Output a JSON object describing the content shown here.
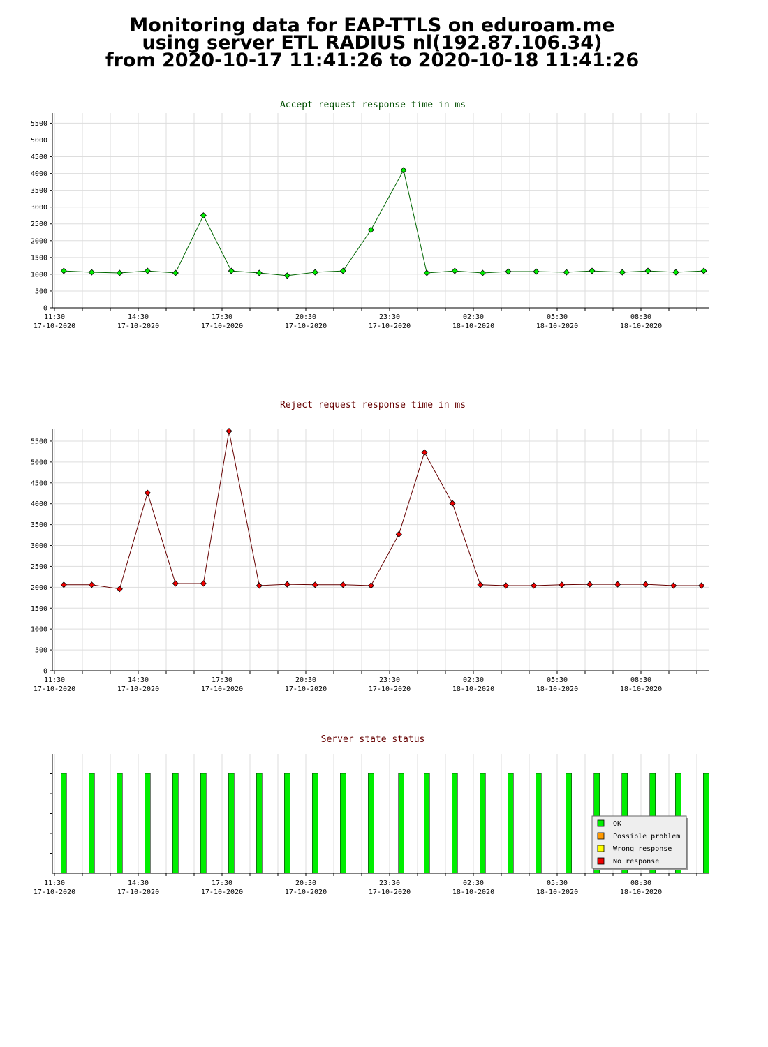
{
  "page": {
    "title_lines": [
      "Monitoring data for EAP-TTLS on eduroam.me",
      "using server ETL RADIUS nl(192.87.106.34)",
      "from 2020-10-17 11:41:26 to 2020-10-18 11:41:26"
    ]
  },
  "x_axis": {
    "ticks": [
      {
        "time": "11:30",
        "date": "17-10-2020"
      },
      {
        "time": "14:30",
        "date": "17-10-2020"
      },
      {
        "time": "17:30",
        "date": "17-10-2020"
      },
      {
        "time": "20:30",
        "date": "17-10-2020"
      },
      {
        "time": "23:30",
        "date": "17-10-2020"
      },
      {
        "time": "02:30",
        "date": "18-10-2020"
      },
      {
        "time": "05:30",
        "date": "18-10-2020"
      },
      {
        "time": "08:30",
        "date": "18-10-2020"
      }
    ]
  },
  "chart_data": [
    {
      "type": "line",
      "title": "Accept request response time in ms",
      "title_color": "#004d00",
      "line_color": "#006600",
      "marker_color": "#00ee00",
      "ylim": [
        0,
        5800
      ],
      "yticks": [
        0,
        500,
        1000,
        1500,
        2000,
        2500,
        3000,
        3500,
        4000,
        4500,
        5000,
        5500
      ],
      "x": [
        "17-10-2020 11:50",
        "17-10-2020 12:50",
        "17-10-2020 13:50",
        "17-10-2020 14:50",
        "17-10-2020 15:50",
        "17-10-2020 16:50",
        "17-10-2020 17:50",
        "17-10-2020 18:50",
        "17-10-2020 19:50",
        "17-10-2020 20:50",
        "17-10-2020 21:50",
        "17-10-2020 22:50",
        "18-10-2020 00:00",
        "18-10-2020 00:50",
        "18-10-2020 01:50",
        "18-10-2020 02:50",
        "18-10-2020 03:45",
        "18-10-2020 04:45",
        "18-10-2020 05:50",
        "18-10-2020 06:45",
        "18-10-2020 07:50",
        "18-10-2020 08:45",
        "18-10-2020 09:45",
        "18-10-2020 10:45"
      ],
      "values": [
        1100,
        1060,
        1040,
        1100,
        1040,
        2750,
        1100,
        1040,
        960,
        1060,
        1100,
        2320,
        4100,
        1040,
        1100,
        1040,
        1080,
        1080,
        1060,
        1100,
        1060,
        1100,
        1060,
        1100
      ]
    },
    {
      "type": "line",
      "title": "Reject request response time in ms",
      "title_color": "#660000",
      "line_color": "#660000",
      "marker_color": "#ee0000",
      "ylim": [
        0,
        5800
      ],
      "yticks": [
        0,
        500,
        1000,
        1500,
        2000,
        2500,
        3000,
        3500,
        4000,
        4500,
        5000,
        5500
      ],
      "x": [
        "17-10-2020 11:50",
        "17-10-2020 12:50",
        "17-10-2020 13:50",
        "17-10-2020 14:50",
        "17-10-2020 15:50",
        "17-10-2020 16:50",
        "17-10-2020 17:45",
        "17-10-2020 18:50",
        "17-10-2020 19:50",
        "17-10-2020 20:50",
        "17-10-2020 21:50",
        "17-10-2020 22:50",
        "17-10-2020 23:50",
        "18-10-2020 00:45",
        "18-10-2020 01:45",
        "18-10-2020 02:45",
        "18-10-2020 03:40",
        "18-10-2020 04:40",
        "18-10-2020 05:40",
        "18-10-2020 06:40",
        "18-10-2020 07:40",
        "18-10-2020 08:40",
        "18-10-2020 09:40",
        "18-10-2020 10:40"
      ],
      "values": [
        2060,
        2060,
        1960,
        4260,
        2090,
        2090,
        5740,
        2040,
        2070,
        2060,
        2060,
        2040,
        3270,
        5230,
        4010,
        2060,
        2040,
        2040,
        2060,
        2070,
        2070,
        2070,
        2040,
        2040
      ]
    },
    {
      "type": "bar",
      "title": "Server state status",
      "title_color": "#660000",
      "x": [
        "17-10-2020 11:50",
        "17-10-2020 12:50",
        "17-10-2020 13:50",
        "17-10-2020 14:50",
        "17-10-2020 15:50",
        "17-10-2020 16:50",
        "17-10-2020 17:50",
        "17-10-2020 18:50",
        "17-10-2020 19:50",
        "17-10-2020 20:50",
        "17-10-2020 21:50",
        "17-10-2020 22:50",
        "17-10-2020 23:55",
        "18-10-2020 00:50",
        "18-10-2020 01:50",
        "18-10-2020 02:50",
        "18-10-2020 03:50",
        "18-10-2020 04:50",
        "18-10-2020 05:55",
        "18-10-2020 06:55",
        "18-10-2020 07:55",
        "18-10-2020 08:55",
        "18-10-2020 09:50",
        "18-10-2020 10:50"
      ],
      "states": [
        "OK",
        "OK",
        "OK",
        "OK",
        "OK",
        "OK",
        "OK",
        "OK",
        "OK",
        "OK",
        "OK",
        "OK",
        "OK",
        "OK",
        "OK",
        "OK",
        "OK",
        "OK",
        "OK",
        "OK",
        "OK",
        "OK",
        "OK",
        "OK"
      ],
      "legend": [
        {
          "label": "OK",
          "color": "#00ee00"
        },
        {
          "label": "Possible problem",
          "color": "#ff9900"
        },
        {
          "label": "Wrong response",
          "color": "#ffff00"
        },
        {
          "label": "No response",
          "color": "#ee0000"
        }
      ],
      "legend_position": "bottom-right"
    }
  ]
}
